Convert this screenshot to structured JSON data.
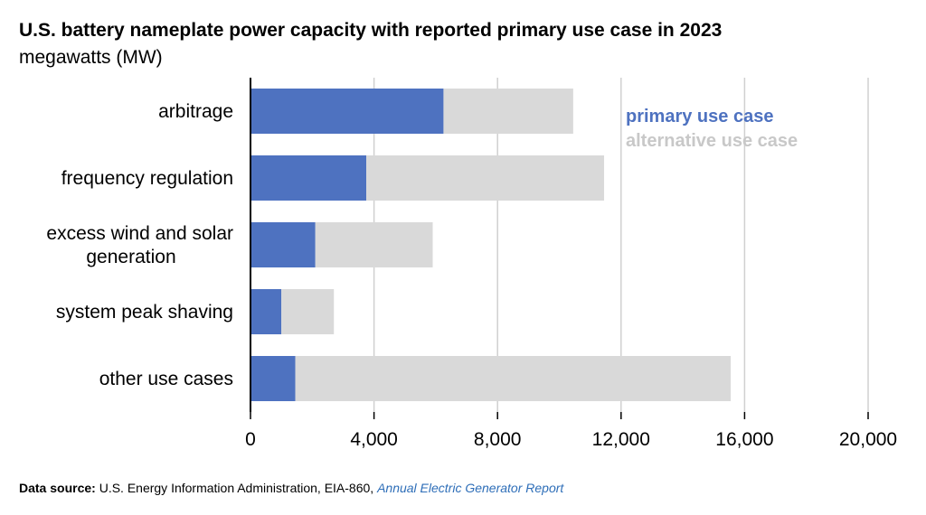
{
  "title": "U.S. battery nameplate power capacity with reported primary use case in 2023",
  "subtitle": "megawatts (MW)",
  "source": {
    "label": "Data source:",
    "text": " U.S. Energy Information Administration, EIA-860, ",
    "link_text": "Annual Electric Generator Report"
  },
  "chart_data": {
    "type": "bar",
    "orientation": "horizontal",
    "stacked": true,
    "categories": [
      "arbitrage",
      "frequency regulation",
      "excess wind and solar generation",
      "system peak shaving",
      "other use cases"
    ],
    "category_label_lines": [
      [
        "arbitrage"
      ],
      [
        "frequency regulation"
      ],
      [
        "excess wind and solar",
        "generation"
      ],
      [
        "system peak shaving"
      ],
      [
        "other use cases"
      ]
    ],
    "series": [
      {
        "name": "primary use case",
        "color": "#4e72c0",
        "values": [
          6250,
          3750,
          2100,
          1000,
          1450
        ]
      },
      {
        "name": "alternative use case",
        "color": "#d9d9d9",
        "values": [
          4200,
          7700,
          3800,
          1700,
          14100
        ]
      }
    ],
    "x_ticks": [
      "0",
      "4,000",
      "8,000",
      "12,000",
      "16,000",
      "20,000"
    ],
    "x_tick_values": [
      0,
      4000,
      8000,
      12000,
      16000,
      20000
    ],
    "xlim": [
      0,
      20000
    ],
    "grid": true,
    "legend_position": "top-right"
  }
}
